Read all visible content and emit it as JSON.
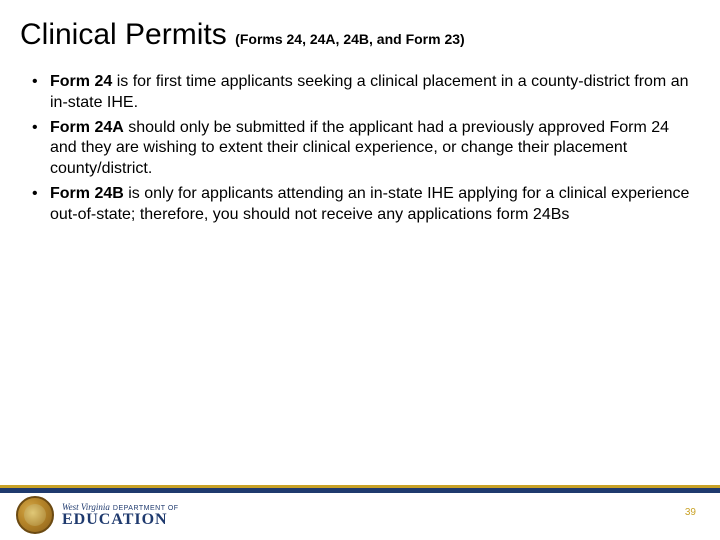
{
  "title": {
    "main": "Clinical Permits",
    "sub": "(Forms 24, 24A, 24B, and Form 23)"
  },
  "bullets": [
    {
      "lead": "Form 24",
      "rest": " is for first time applicants seeking a clinical placement in a county-district from an in-state IHE."
    },
    {
      "lead": "Form 24A",
      "rest": " should only be submitted if the applicant had a previously approved Form 24 and they are wishing to extent their clinical experience, or change their placement county/district."
    },
    {
      "lead": "Form 24B",
      "rest": " is only for applicants attending an in-state IHE applying for a clinical experience out-of-state; therefore, you should not receive any applications form 24Bs"
    }
  ],
  "footer": {
    "logo_wv": "West Virginia",
    "logo_dept": "DEPARTMENT OF",
    "logo_edu": "EDUCATION",
    "page_number": "39"
  },
  "colors": {
    "accent_gold": "#c9a227",
    "accent_blue": "#1f3a6e",
    "text": "#000000",
    "background": "#ffffff"
  }
}
